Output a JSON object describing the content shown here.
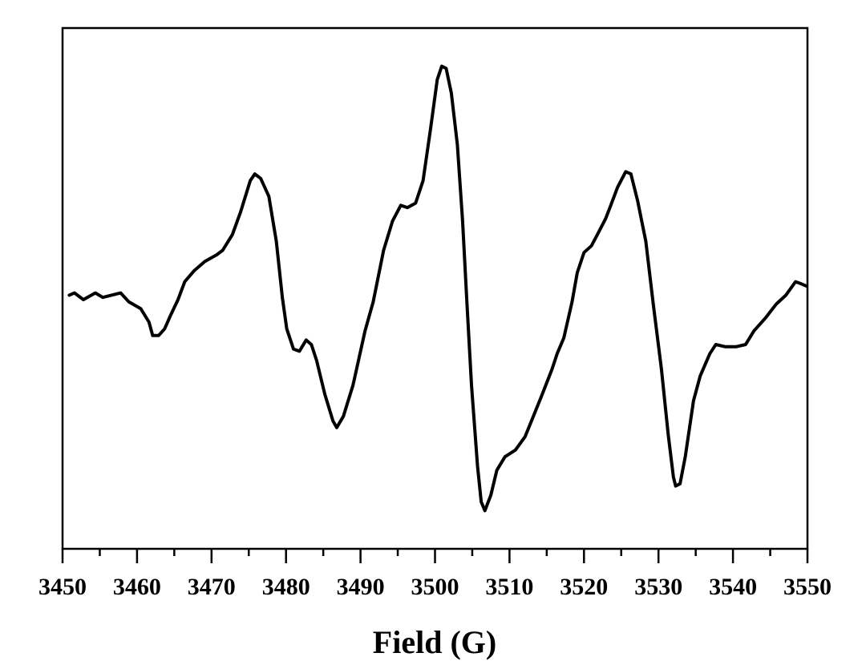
{
  "chart_data": {
    "type": "line",
    "title": "",
    "xlabel": "Field (G)",
    "ylabel": "",
    "xlim": [
      3450,
      3550
    ],
    "ylim": [
      -1.14,
      1.18
    ],
    "x_ticks": [
      3450,
      3460,
      3470,
      3480,
      3490,
      3500,
      3510,
      3520,
      3530,
      3540,
      3550
    ],
    "x_tick_labels": [
      "3450",
      "3460",
      "3470",
      "3480",
      "3490",
      "3500",
      "3510",
      "3520",
      "3530",
      "3540",
      "3550"
    ],
    "y_ticks_shown": false,
    "grid": false,
    "line_color": "#000000",
    "series": [
      {
        "x": [
          3450.9,
          3451.6,
          3452.8,
          3454.4,
          3455.4,
          3457.8,
          3458.9,
          3460.5,
          3461.6,
          3462.1,
          3462.9,
          3463.7,
          3464.5,
          3465.5,
          3466.4,
          3467.7,
          3469.1,
          3470.7,
          3471.5,
          3472.8,
          3473.9,
          3475.2,
          3475.8,
          3476.6,
          3477.7,
          3478.7,
          3479.5,
          3480.1,
          3481.0,
          3481.8,
          3482.7,
          3483.4,
          3484.1,
          3485.2,
          3486.3,
          3486.8,
          3487.7,
          3489.0,
          3490.6,
          3491.7,
          3493.1,
          3494.3,
          3495.4,
          3496.3,
          3497.4,
          3498.4,
          3499.4,
          3500.3,
          3500.9,
          3501.5,
          3502.2,
          3503.0,
          3503.7,
          3504.3,
          3504.9,
          3505.7,
          3506.2,
          3506.7,
          3507.5,
          3508.3,
          3509.4,
          3510.8,
          3512.1,
          3513.2,
          3514.3,
          3515.7,
          3516.4,
          3517.3,
          3518.4,
          3519.1,
          3520.0,
          3521.0,
          3521.8,
          3522.9,
          3523.6,
          3524.5,
          3525.6,
          3526.3,
          3527.2,
          3528.3,
          3529.3,
          3530.4,
          3531.3,
          3532.0,
          3532.3,
          3532.9,
          3533.6,
          3534.7,
          3535.6,
          3536.9,
          3537.7,
          3539.0,
          3540.4,
          3541.7,
          3542.8,
          3544.4,
          3545.8,
          3547.1,
          3548.4,
          3549.2,
          3549.9
        ],
        "y": [
          -0.01,
          0.0,
          -0.03,
          0.0,
          -0.02,
          0.0,
          -0.04,
          -0.07,
          -0.13,
          -0.19,
          -0.19,
          -0.16,
          -0.1,
          -0.03,
          0.05,
          0.1,
          0.14,
          0.17,
          0.19,
          0.26,
          0.36,
          0.5,
          0.53,
          0.51,
          0.43,
          0.23,
          -0.02,
          -0.16,
          -0.25,
          -0.26,
          -0.21,
          -0.23,
          -0.3,
          -0.45,
          -0.57,
          -0.6,
          -0.55,
          -0.41,
          -0.17,
          -0.04,
          0.19,
          0.32,
          0.39,
          0.38,
          0.4,
          0.5,
          0.73,
          0.95,
          1.01,
          1.0,
          0.89,
          0.66,
          0.32,
          -0.05,
          -0.41,
          -0.77,
          -0.93,
          -0.97,
          -0.9,
          -0.79,
          -0.73,
          -0.7,
          -0.64,
          -0.55,
          -0.46,
          -0.34,
          -0.27,
          -0.2,
          -0.04,
          0.09,
          0.18,
          0.21,
          0.26,
          0.33,
          0.39,
          0.47,
          0.54,
          0.53,
          0.41,
          0.23,
          -0.05,
          -0.34,
          -0.63,
          -0.82,
          -0.86,
          -0.85,
          -0.73,
          -0.48,
          -0.37,
          -0.27,
          -0.23,
          -0.24,
          -0.24,
          -0.23,
          -0.17,
          -0.11,
          -0.05,
          -0.01,
          0.05,
          0.04,
          0.03
        ]
      }
    ]
  }
}
